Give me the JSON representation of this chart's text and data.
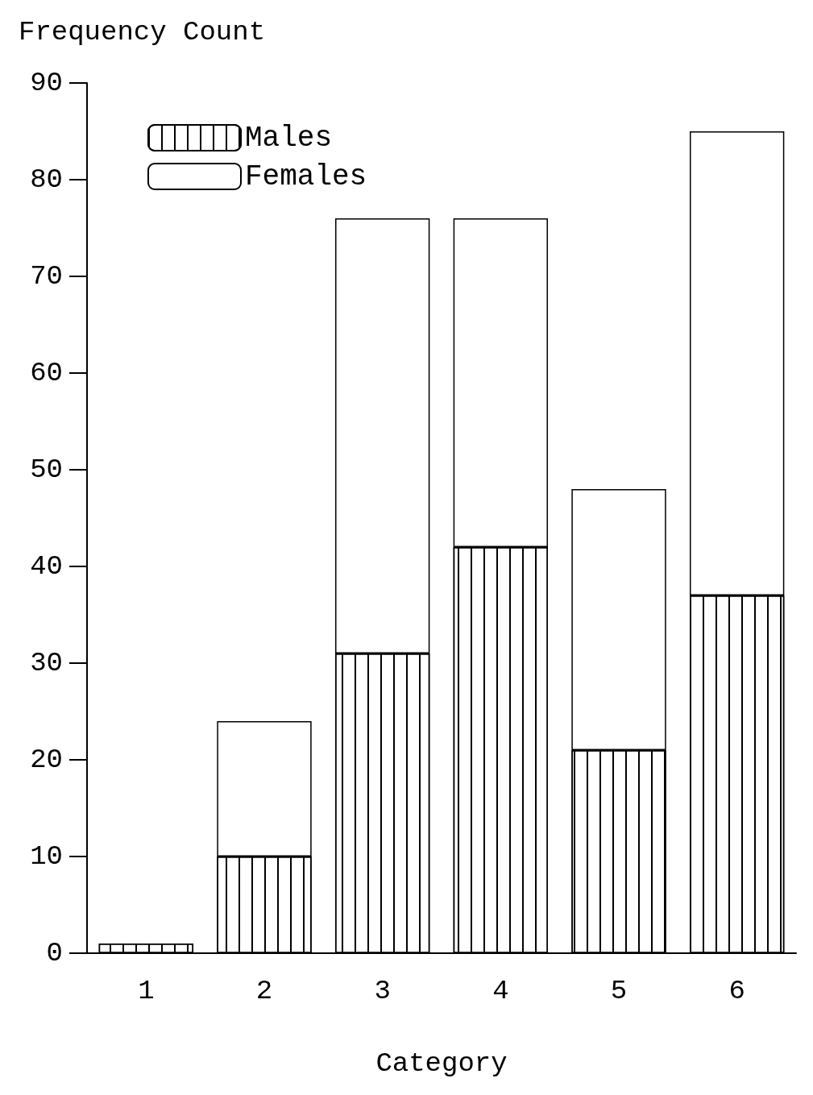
{
  "chart_data": {
    "type": "bar",
    "ylabel": "Frequency Count",
    "xlabel": "Category",
    "categories": [
      "1",
      "2",
      "3",
      "4",
      "5",
      "6"
    ],
    "stacked": true,
    "series": [
      {
        "name": "Males",
        "color": "#ffffff",
        "values": [
          1,
          10,
          31,
          42,
          21,
          37
        ]
      },
      {
        "name": "Females",
        "color": "#ffffff",
        "values": [
          0,
          14,
          45,
          34,
          27,
          48
        ]
      }
    ],
    "ylim": [
      0,
      90
    ],
    "yticks": [
      0,
      10,
      20,
      30,
      40,
      50,
      60,
      70,
      80,
      90
    ],
    "grid": false,
    "legend": "top left"
  }
}
